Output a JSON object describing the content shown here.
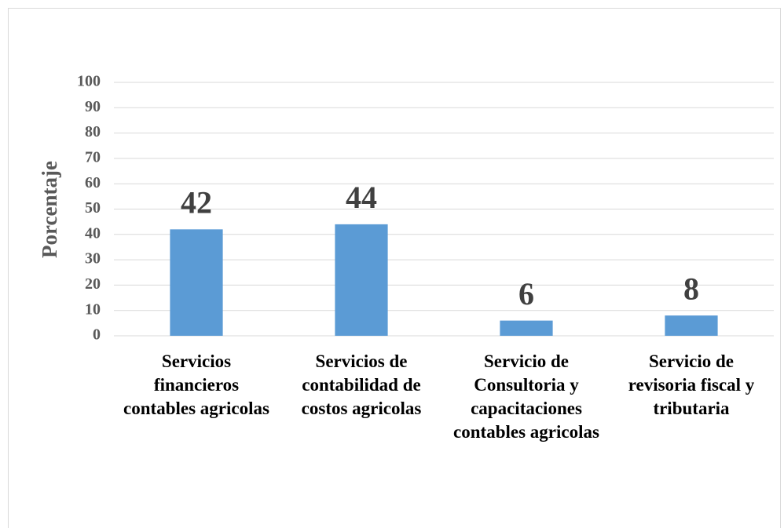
{
  "chart_data": {
    "type": "bar",
    "y_label": "Porcentaje",
    "categories": [
      "Servicios financieros contables agricolas",
      "Servicios de contabilidad de costos agricolas",
      "Servicio de Consultoria y capacitaciones contables agricolas",
      "Servicio de revisoria fiscal y tributaria"
    ],
    "values": [
      42,
      44,
      6,
      8
    ],
    "color": "#5b9bd5",
    "ylim": [
      0,
      100
    ],
    "yticks": [
      0,
      10,
      20,
      30,
      40,
      50,
      60,
      70,
      80,
      90,
      100
    ],
    "grid": true
  }
}
